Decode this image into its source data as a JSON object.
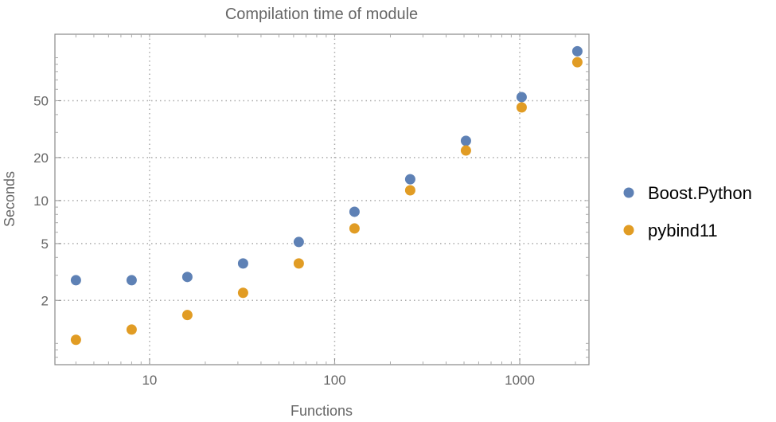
{
  "chart_data": {
    "type": "scatter",
    "title": "Compilation time of module",
    "xlabel": "Functions",
    "ylabel": "Seconds",
    "xscale": "log",
    "yscale": "log",
    "xlim": [
      3.08,
      2366
    ],
    "ylim": [
      0.71,
      146
    ],
    "xticks": [
      {
        "value": 10,
        "label": "10"
      },
      {
        "value": 100,
        "label": "100"
      },
      {
        "value": 1000,
        "label": "1000"
      }
    ],
    "yticks": [
      {
        "value": 2,
        "label": "2"
      },
      {
        "value": 5,
        "label": "5"
      },
      {
        "value": 10,
        "label": "10"
      },
      {
        "value": 20,
        "label": "20"
      },
      {
        "value": 50,
        "label": "50"
      }
    ],
    "grid": "dotted at major ticks",
    "legend_position": "right",
    "x": [
      4,
      8,
      16,
      32,
      64,
      128,
      256,
      512,
      1024,
      2048
    ],
    "series": [
      {
        "name": "Boost.Python",
        "color": "#5e81b5",
        "values": [
          2.77,
          2.77,
          2.92,
          3.63,
          5.13,
          8.35,
          14.1,
          26.2,
          53,
          111
        ]
      },
      {
        "name": "pybind11",
        "color": "#e19c24",
        "values": [
          1.06,
          1.25,
          1.58,
          2.26,
          3.63,
          6.38,
          11.8,
          22.4,
          44.9,
          93
        ]
      }
    ]
  }
}
